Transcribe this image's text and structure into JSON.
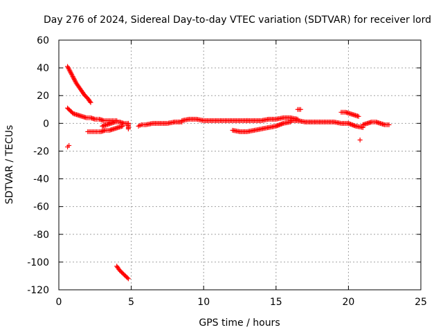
{
  "chart_data": {
    "type": "scatter",
    "title": "Day 276 of 2024, Sidereal Day-to-day VTEC variation (SDTVAR) for receiver lord",
    "xlabel": "GPS time / hours",
    "ylabel": "SDTVAR / TECUs",
    "xlim": [
      0,
      25
    ],
    "ylim": [
      -120,
      60
    ],
    "xticks": [
      "0",
      "5",
      "10",
      "15",
      "20",
      "25"
    ],
    "yticks": [
      "60",
      "40",
      "20",
      "0",
      "-20",
      "-40",
      "-60",
      "-80",
      "-100",
      "-120"
    ],
    "grid": true,
    "marker": "plus",
    "color": "#ff0000",
    "series": [
      {
        "name": "SDTVAR",
        "segments": [
          {
            "x": [
              0.6,
              0.8,
              1.0,
              1.2,
              1.4,
              1.6,
              1.8,
              2.0,
              2.2
            ],
            "y": [
              41,
              37,
              33,
              29,
              26,
              23,
              20,
              18,
              15
            ]
          },
          {
            "x": [
              0.6,
              0.8,
              1.0,
              1.3,
              1.6,
              1.9,
              2.2,
              2.5,
              2.8,
              3.1,
              3.4,
              3.7,
              4.0
            ],
            "y": [
              11,
              9,
              7,
              6,
              5,
              4,
              4,
              3,
              3,
              2,
              2,
              2,
              2
            ]
          },
          {
            "x": [
              2.0,
              2.3,
              2.6,
              2.9,
              3.2,
              3.5,
              3.8,
              4.1,
              4.4
            ],
            "y": [
              -6,
              -6,
              -6,
              -6,
              -5,
              -5,
              -4,
              -3,
              -2
            ]
          },
          {
            "x": [
              3.0,
              3.3,
              3.6,
              3.9,
              4.2,
              4.5,
              4.8
            ],
            "y": [
              -2,
              -1,
              0,
              1,
              1,
              0,
              0
            ]
          },
          {
            "x": [
              0.6,
              0.7
            ],
            "y": [
              -17,
              -16
            ]
          },
          {
            "x": [
              4.0,
              4.2,
              4.4,
              4.6,
              4.8
            ],
            "y": [
              -103,
              -106,
              -108,
              -110,
              -112
            ]
          },
          {
            "x": [
              4.8,
              4.8
            ],
            "y": [
              -4,
              0
            ]
          },
          {
            "x": [
              5.5,
              5.7,
              6.0,
              6.5,
              7.0,
              7.5,
              8.0,
              8.5
            ],
            "y": [
              -2,
              -1,
              -1,
              0,
              0,
              0,
              1,
              1
            ]
          },
          {
            "x": [
              8.5,
              9.0,
              9.5,
              10.0,
              10.5,
              11.0,
              11.5,
              12.0,
              12.5,
              13.0
            ],
            "y": [
              2,
              3,
              3,
              2,
              2,
              2,
              2,
              2,
              2,
              2
            ]
          },
          {
            "x": [
              13.0,
              13.5,
              14.0,
              14.5,
              15.0,
              15.5,
              16.0,
              16.5
            ],
            "y": [
              2,
              2,
              2,
              3,
              3,
              4,
              4,
              3
            ]
          },
          {
            "x": [
              12.0,
              12.5,
              13.0,
              13.5,
              14.0,
              14.5,
              15.0,
              15.5,
              16.0
            ],
            "y": [
              -5,
              -6,
              -6,
              -5,
              -4,
              -3,
              -2,
              0,
              1
            ]
          },
          {
            "x": [
              16.5,
              16.7
            ],
            "y": [
              10,
              10
            ]
          },
          {
            "x": [
              16.0,
              16.5,
              17.0,
              17.5,
              18.0,
              18.5,
              19.0,
              19.5,
              20.0,
              20.5,
              21.0
            ],
            "y": [
              2,
              2,
              1,
              1,
              1,
              1,
              1,
              0,
              0,
              -2,
              -3
            ]
          },
          {
            "x": [
              19.5,
              19.8,
              20.1,
              20.4,
              20.7
            ],
            "y": [
              8,
              8,
              7,
              6,
              5
            ]
          },
          {
            "x": [
              20.8
            ],
            "y": [
              -12
            ]
          },
          {
            "x": [
              21.0,
              21.3,
              21.6,
              21.9,
              22.2,
              22.5,
              22.8
            ],
            "y": [
              -1,
              0,
              1,
              1,
              0,
              -1,
              -1
            ]
          }
        ]
      }
    ]
  }
}
